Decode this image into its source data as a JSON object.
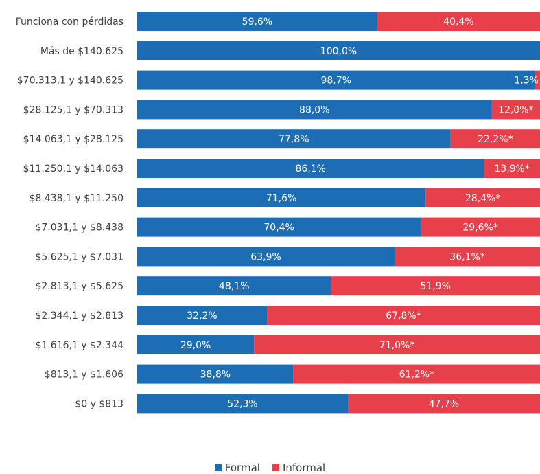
{
  "chart_data": {
    "type": "bar",
    "orientation": "horizontal",
    "stacked": true,
    "percent": true,
    "categories": [
      "Funciona con pérdidas",
      "Más de $140.625",
      "$70.313,1 y $140.625",
      "$28.125,1 y $70.313",
      "$14.063,1 y $28.125",
      "$11.250,1 y $14.063",
      "$8.438,1 y $11.250",
      "$7.031,1 y $8.438",
      "$5.625,1 y $7.031",
      "$2.813,1 y $5.625",
      "$2.344,1 y $2.813",
      "$1.616,1 y $2.344",
      "$813,1 y $1.606",
      "$0 y $813"
    ],
    "series": [
      {
        "name": "Formal",
        "color": "#1d6db5",
        "values": [
          59.6,
          100.0,
          98.7,
          88.0,
          77.8,
          86.1,
          71.6,
          70.4,
          63.9,
          48.1,
          32.2,
          29.0,
          38.8,
          52.3
        ],
        "labels": [
          "59,6%",
          "100,0%",
          "98,7%",
          "88,0%",
          "77,8%",
          "86,1%",
          "71,6%",
          "70,4%",
          "63,9%",
          "48,1%",
          "32,2%",
          "29,0%",
          "38,8%",
          "52,3%"
        ]
      },
      {
        "name": "Informal",
        "color": "#e8404a",
        "values": [
          40.4,
          0.0,
          1.3,
          12.0,
          22.2,
          13.9,
          28.4,
          29.6,
          36.1,
          51.9,
          67.8,
          71.0,
          61.2,
          47.7
        ],
        "labels": [
          "40,4%",
          "",
          "1,3%",
          "12,0%*",
          "22,2%*",
          "13,9%*",
          "28,4%*",
          "29,6%*",
          "36,1%*",
          "51,9%",
          "67,8%*",
          "71,0%*",
          "61,2%*",
          "47,7%"
        ]
      }
    ],
    "xlim": [
      0,
      100
    ],
    "title": "",
    "xlabel": "",
    "ylabel": "",
    "legend_position": "bottom-center",
    "grid": false
  }
}
